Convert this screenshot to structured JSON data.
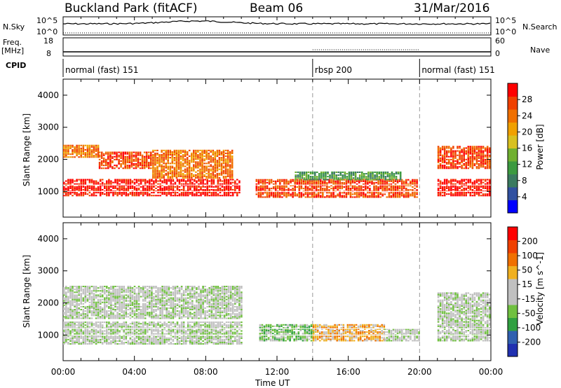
{
  "header": {
    "station": "Buckland Park (fitACF)",
    "beam": "Beam 06",
    "date": "31/Mar/2016"
  },
  "left_labels": {
    "nsky": "N.Sky",
    "nsky_top": "10^5",
    "nsky_bottom": "10^0",
    "freq": "Freq.",
    "freq_unit": "[MHz]",
    "freq_top": "18",
    "freq_bottom": "8",
    "cpid": "CPID"
  },
  "right_labels": {
    "nsearch": "N.Search",
    "nsearch_top": "10^5",
    "nsearch_bottom": "10^0",
    "nave": "Nave",
    "nave_top": "60",
    "nave_bottom": "0"
  },
  "cpid_segments": [
    {
      "label": "normal (fast) 151",
      "start_h": 0,
      "end_h": 14
    },
    {
      "label": "rbsp 200",
      "start_h": 14,
      "end_h": 20
    },
    {
      "label": "normal (fast) 151",
      "start_h": 20,
      "end_h": 24
    }
  ],
  "colors": {
    "power_scale": [
      "#0000ff",
      "#3050a0",
      "#3a7a60",
      "#3c9a40",
      "#70b030",
      "#d8c020",
      "#f0a000",
      "#f07000",
      "#f04000",
      "#ff0000"
    ],
    "velocity_scale": [
      "#2030b0",
      "#3060b0",
      "#30a040",
      "#70c040",
      "#c0c0c0",
      "#c0c0c0",
      "#f0b020",
      "#f07000",
      "#f04000",
      "#ff0000"
    ]
  },
  "chart_data": [
    {
      "type": "heatmap",
      "name": "power",
      "ylabel": "Slant Range [km]",
      "y_ticks": [
        "1000",
        "2000",
        "3000",
        "4000"
      ],
      "ylim": [
        200,
        4500
      ],
      "colorbar_label": "Power [dB]",
      "colorbar_ticks": [
        "4",
        "8",
        "12",
        "16",
        "20",
        "24",
        "28"
      ],
      "bands": [
        {
          "t0": 0,
          "t1": 9.9,
          "r0": 850,
          "r1": 1350,
          "level": 9
        },
        {
          "t0": 10.8,
          "t1": 19.8,
          "r0": 800,
          "r1": 1350,
          "level": 8
        },
        {
          "t0": 21,
          "t1": 24,
          "r0": 850,
          "r1": 1350,
          "level": 9
        },
        {
          "t0": 0,
          "t1": 2,
          "r0": 2050,
          "r1": 2450,
          "level": 7
        },
        {
          "t0": 2,
          "t1": 5,
          "r0": 1700,
          "r1": 2200,
          "level": 8
        },
        {
          "t0": 5,
          "t1": 9.5,
          "r0": 1400,
          "r1": 2300,
          "level": 7
        },
        {
          "t0": 13,
          "t1": 19,
          "r0": 1350,
          "r1": 1600,
          "level": 3
        },
        {
          "t0": 21,
          "t1": 24,
          "r0": 1700,
          "r1": 2400,
          "level": 8
        }
      ]
    },
    {
      "type": "heatmap",
      "name": "velocity",
      "ylabel": "Slant Range [km]",
      "y_ticks": [
        "1000",
        "2000",
        "3000",
        "4000"
      ],
      "ylim": [
        200,
        4500
      ],
      "colorbar_label": "Velocity [m s^-1]",
      "colorbar_ticks": [
        "200",
        "100",
        "50",
        "15",
        "-15",
        "-50",
        "-100",
        "-200"
      ],
      "x_ticks": [
        "00:00",
        "04:00",
        "08:00",
        "12:00",
        "16:00",
        "20:00",
        "00:00"
      ],
      "xlabel": "Time UT",
      "bands": [
        {
          "t0": 0,
          "t1": 10,
          "r0": 700,
          "r1": 1400,
          "level": 4
        },
        {
          "t0": 11,
          "t1": 14,
          "r0": 800,
          "r1": 1300,
          "level": 3
        },
        {
          "t0": 14,
          "t1": 18,
          "r0": 800,
          "r1": 1300,
          "level": 6
        },
        {
          "t0": 18,
          "t1": 20,
          "r0": 800,
          "r1": 1200,
          "level": 4
        },
        {
          "t0": 0,
          "t1": 10,
          "r0": 1500,
          "r1": 2500,
          "level": 4
        },
        {
          "t0": 21,
          "t1": 24,
          "r0": 800,
          "r1": 2300,
          "level": 4
        }
      ]
    }
  ]
}
